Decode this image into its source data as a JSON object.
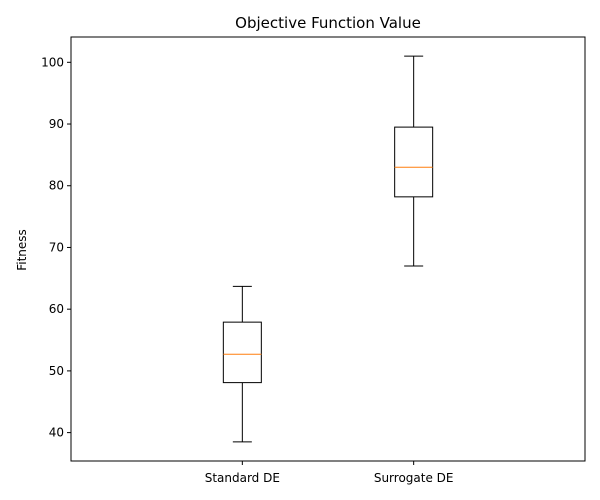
{
  "chart_data": {
    "type": "boxplot",
    "title": "Objective Function Value",
    "xlabel": "",
    "ylabel": "Fitness",
    "ylim": [
      35.4,
      104.1
    ],
    "yticks": [
      40,
      50,
      60,
      70,
      80,
      90,
      100
    ],
    "categories": [
      "Standard DE",
      "Surrogate DE"
    ],
    "boxes": [
      {
        "category": "Standard DE",
        "whisker_low": 38.5,
        "q1": 48.1,
        "median": 52.7,
        "q3": 57.9,
        "whisker_high": 63.7
      },
      {
        "category": "Surrogate DE",
        "whisker_low": 67.0,
        "q1": 78.2,
        "median": 83.0,
        "q3": 89.5,
        "whisker_high": 101.0
      }
    ],
    "grid": false,
    "colors": {
      "box": "#000000",
      "median": "#ff7f0e",
      "axis": "#000000"
    }
  }
}
